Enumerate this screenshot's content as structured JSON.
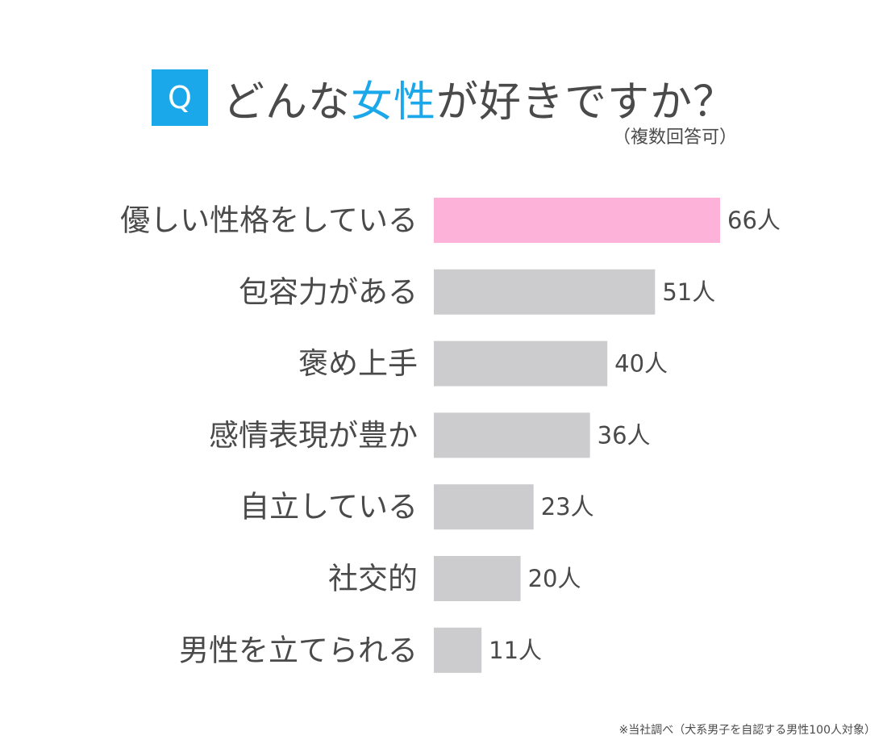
{
  "header": {
    "badge": "Q",
    "title_before": "どんな",
    "title_accent": "女性",
    "title_after": "が好きですか？",
    "subtitle": "（複数回答可）"
  },
  "footnote": "※当社調べ（犬系男子を自認する男性100人対象）",
  "colors": {
    "accent": "#1ba8ea",
    "highlight_bar": "#fdb3d9",
    "bar": "#cccbcd",
    "text": "#4a4a4a"
  },
  "chart_data": {
    "type": "bar",
    "orientation": "horizontal",
    "categories": [
      "優しい性格をしている",
      "包容力がある",
      "褒め上手",
      "感情表現が豊か",
      "自立している",
      "社交的",
      "男性を立てられる"
    ],
    "values": [
      66,
      51,
      40,
      36,
      23,
      20,
      11
    ],
    "value_labels": [
      "66人",
      "51人",
      "40人",
      "36人",
      "23人",
      "20人",
      "11人"
    ],
    "highlight_index": 0,
    "grid": false,
    "legend": "none"
  }
}
